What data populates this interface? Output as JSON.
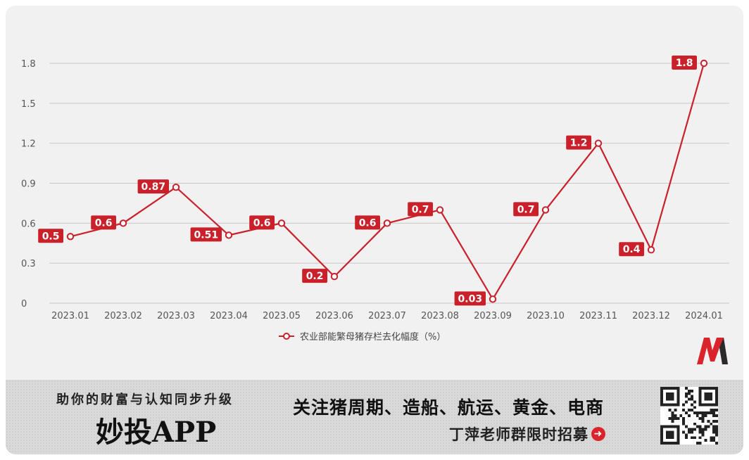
{
  "chart_data": {
    "type": "line",
    "categories": [
      "2023.01",
      "2023.02",
      "2023.03",
      "2023.04",
      "2023.05",
      "2023.06",
      "2023.07",
      "2023.08",
      "2023.09",
      "2023.10",
      "2023.11",
      "2023.12",
      "2024.01"
    ],
    "series": [
      {
        "name": "农业部能繁母猪存栏去化幅度（%）",
        "values": [
          0.5,
          0.6,
          0.87,
          0.51,
          0.6,
          0.2,
          0.6,
          0.7,
          0.03,
          0.7,
          1.2,
          0.4,
          1.8
        ]
      }
    ],
    "data_labels": [
      "0.5",
      "0.6",
      "0.87",
      "0.51",
      "0.6",
      "0.2",
      "0.6",
      "0.7",
      "0.03",
      "0.7",
      "1.2",
      "0.4",
      "1.8"
    ],
    "y_ticks": [
      0,
      0.3,
      0.6,
      0.9,
      1.2,
      1.5,
      1.8
    ],
    "y_tick_labels": [
      "0",
      "0.3",
      "0.6",
      "0.9",
      "1.2",
      "1.5",
      "1.8"
    ],
    "ylim": [
      0,
      1.8
    ],
    "grid": true,
    "legend": "bottom-center",
    "line_color": "#c9202a",
    "label_bg": "#c9202a"
  },
  "banner": {
    "slogan": "助你的财富与认知同步升级",
    "app_name": "妙投APP",
    "topics": "关注猪周期、造船、航运、黄金、电商",
    "recruit": "丁萍老师群限时招募",
    "arrow_icon": "arrow-right-circle-icon",
    "accent": "#d8242a"
  }
}
